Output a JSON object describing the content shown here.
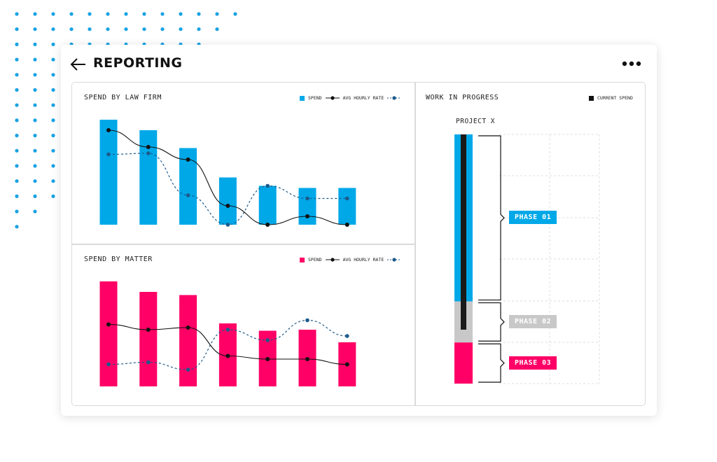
{
  "header": {
    "title": "REPORTING"
  },
  "colors": {
    "blue": "#00a8e8",
    "pink": "#ff0066",
    "navy": "#1c5a8a",
    "gray": "#c8c8c8",
    "black": "#111111"
  },
  "icons": {
    "back": "arrow-left-icon",
    "more": "more-horizontal-icon"
  },
  "law_firm": {
    "title": "SPEND BY LAW FIRM",
    "legend": {
      "spend": "SPEND",
      "avg": "AVG HOURLY RATE"
    }
  },
  "matter": {
    "title": "SPEND BY MATTER",
    "legend": {
      "spend": "SPEND",
      "avg": "AVG HOURLY RATE"
    }
  },
  "wip": {
    "title": "WORK IN PROGRESS",
    "legend": {
      "current": "CURRENT SPEND"
    },
    "project": "PROJECT X",
    "phases": [
      {
        "label": "PHASE 01",
        "color": "#00a8e8"
      },
      {
        "label": "PHASE 02",
        "color": "#c8c8c8"
      },
      {
        "label": "PHASE 03",
        "color": "#ff0066"
      }
    ]
  },
  "chart_data": [
    {
      "type": "bar",
      "title": "SPEND BY LAW FIRM",
      "ylim": [
        0,
        100
      ],
      "series": [
        {
          "name": "SPEND",
          "values": [
            100,
            90,
            73,
            45,
            37,
            35,
            35
          ]
        },
        {
          "name": "AVG HOURLY RATE",
          "values": [
            90,
            74,
            62,
            18,
            0,
            8,
            0
          ]
        },
        {
          "name": "",
          "values": [
            67,
            68,
            28,
            0,
            37,
            25,
            25
          ]
        }
      ]
    },
    {
      "type": "bar",
      "title": "SPEND BY MATTER",
      "ylim": [
        0,
        100
      ],
      "series": [
        {
          "name": "SPEND",
          "values": [
            100,
            90,
            87,
            60,
            53,
            54,
            42
          ]
        },
        {
          "name": "AVG HOURLY RATE",
          "values": [
            59,
            54,
            56,
            29,
            26,
            26,
            21
          ]
        },
        {
          "name": "",
          "values": [
            21,
            23,
            16,
            54,
            44,
            63,
            48
          ]
        }
      ]
    },
    {
      "type": "bar",
      "title": "WORK IN PROGRESS",
      "categories": [
        "PROJECT X"
      ],
      "series": [
        {
          "name": "PHASE 01",
          "values": [
            65
          ]
        },
        {
          "name": "PHASE 02",
          "values": [
            16
          ]
        },
        {
          "name": "PHASE 03",
          "values": [
            16
          ]
        },
        {
          "name": "CURRENT SPEND",
          "values": [
            76
          ]
        }
      ]
    }
  ]
}
